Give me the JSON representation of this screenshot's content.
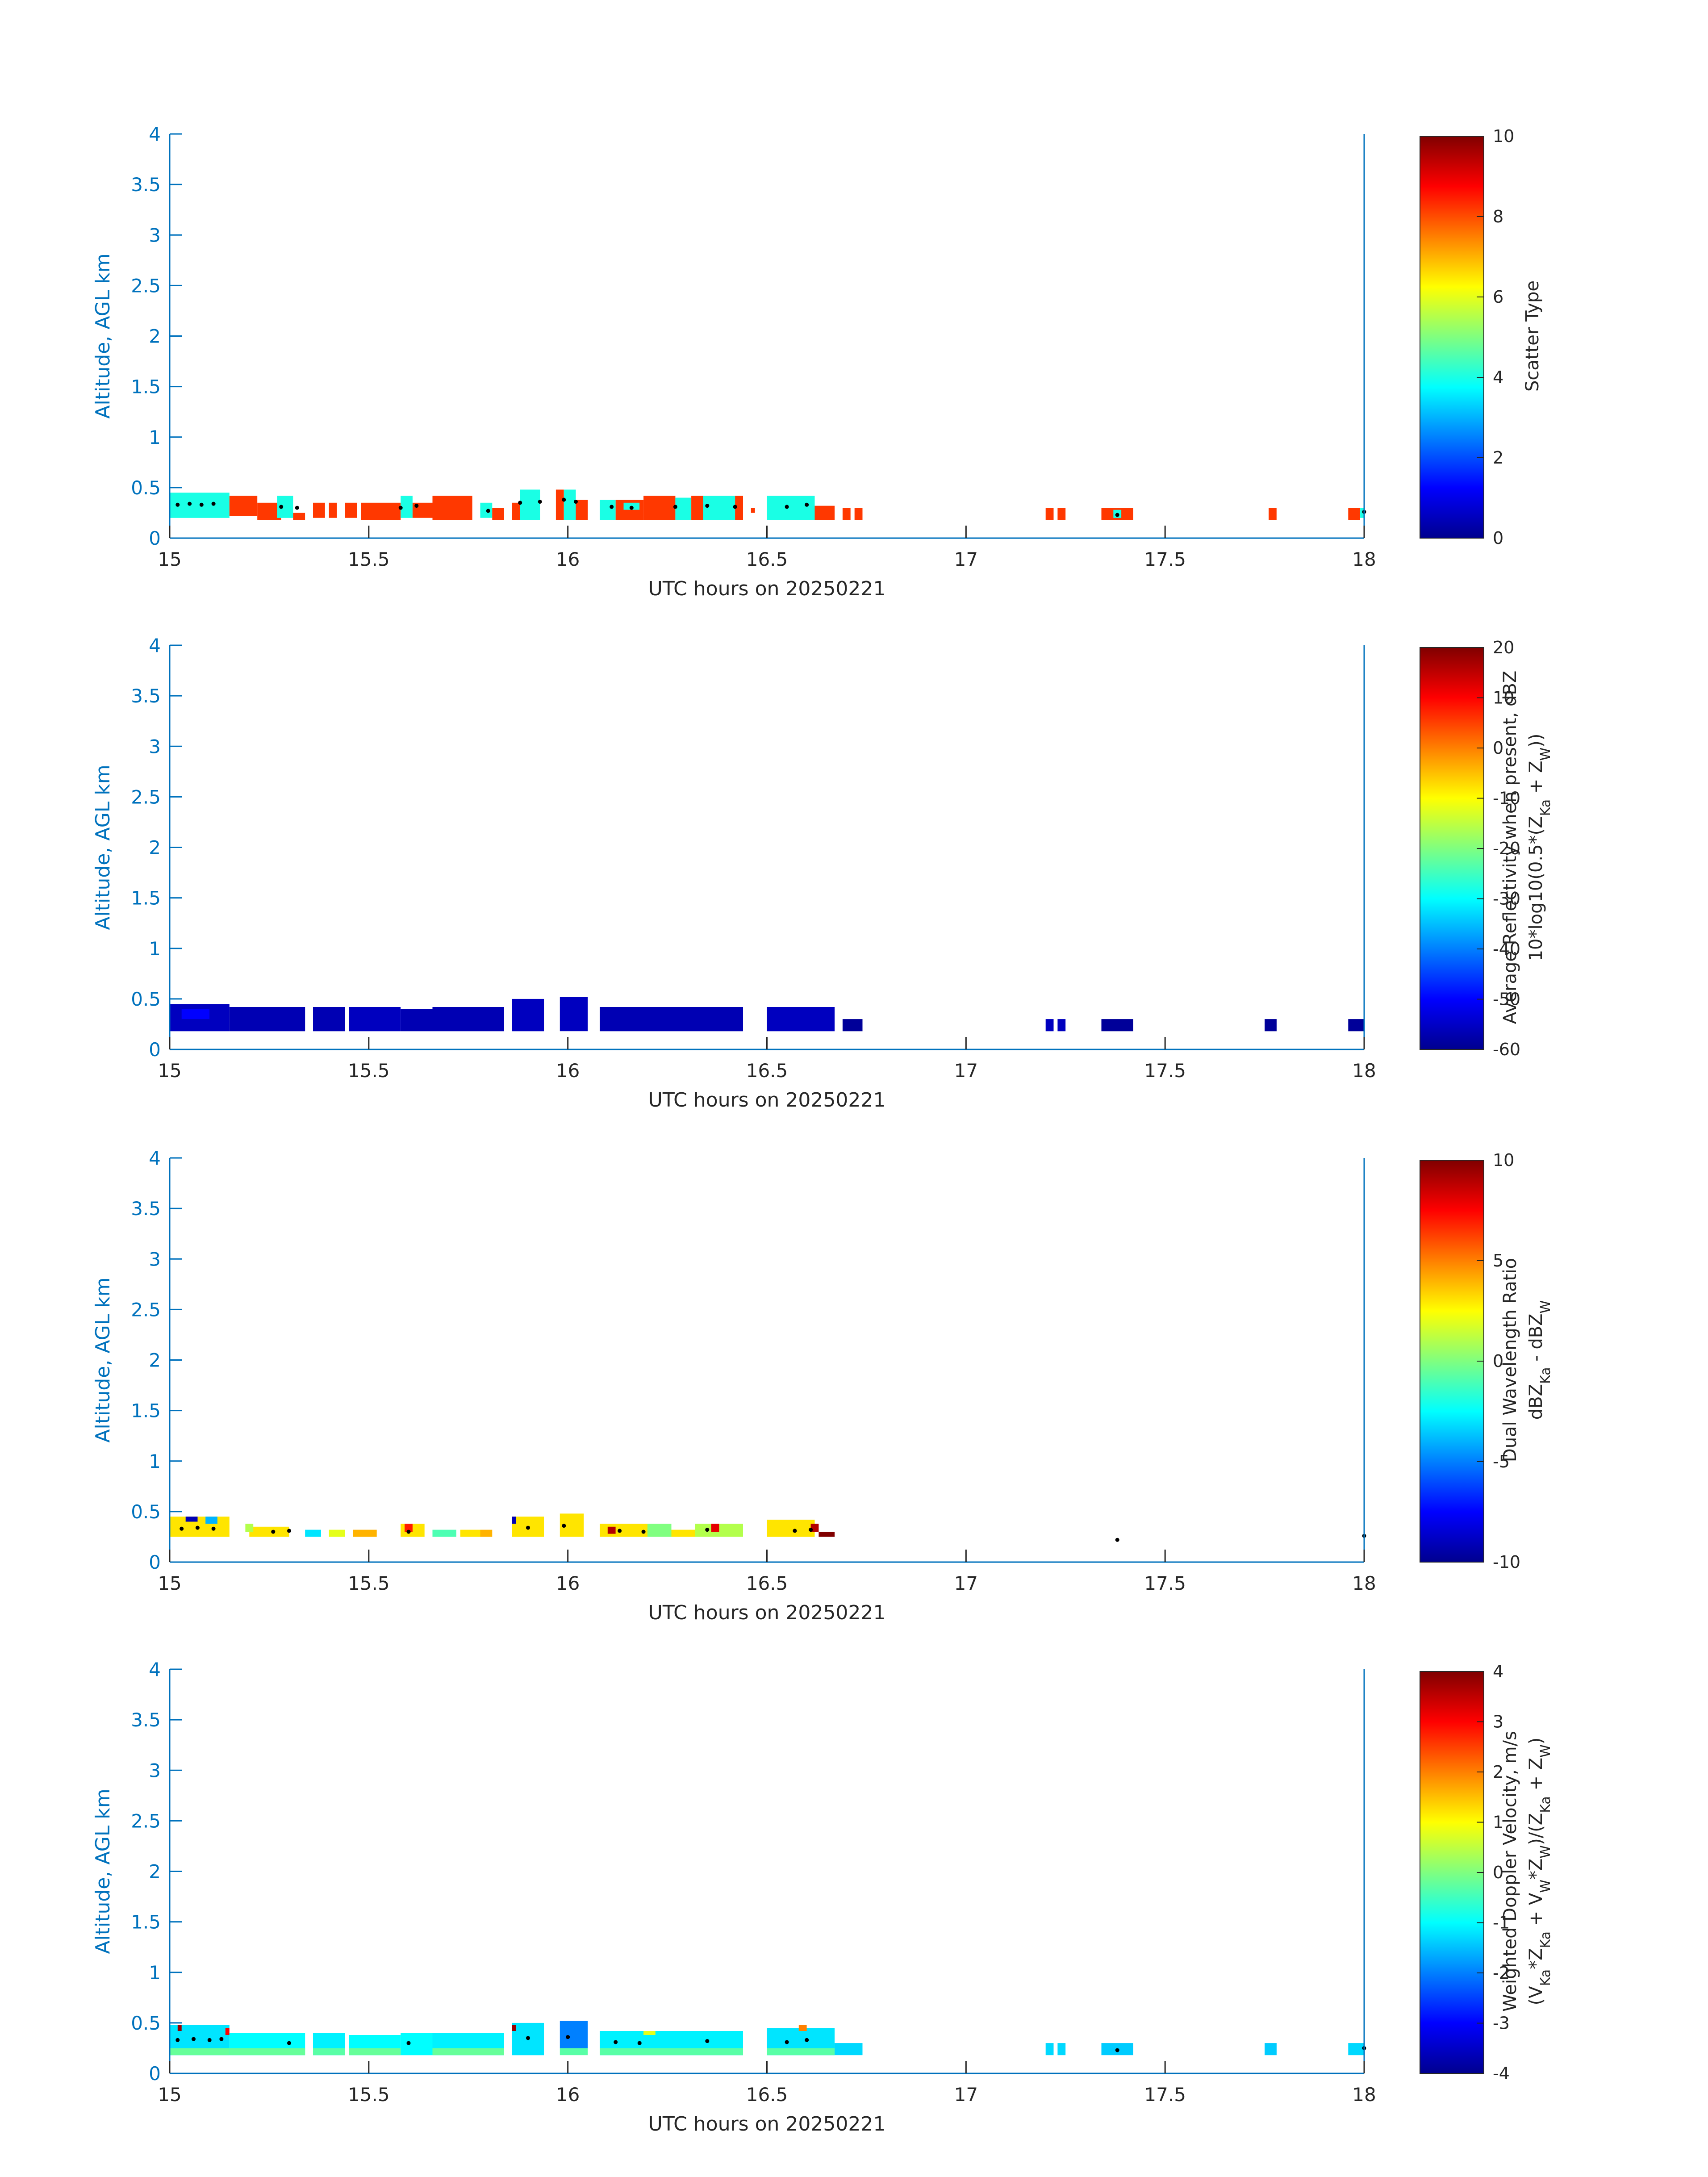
{
  "figure_title": "",
  "chart_data": [
    {
      "type": "heatmap",
      "name": "scatter-type",
      "xlabel": "UTC hours on 20250221",
      "ylabel": "Altitude, AGL km",
      "xlim": [
        15,
        18
      ],
      "ylim": [
        0,
        4
      ],
      "xticks": [
        "15",
        "15.5",
        "16",
        "16.5",
        "17",
        "17.5",
        "18"
      ],
      "yticks": [
        "0",
        "0.5",
        "1",
        "1.5",
        "2",
        "2.5",
        "3",
        "3.5",
        "4"
      ],
      "colorbar": {
        "colormap": "jet",
        "range": [
          0,
          10
        ],
        "ticks": [
          "0",
          "2",
          "4",
          "6",
          "8",
          "10"
        ],
        "label_lines": [
          "Scatter Type"
        ]
      },
      "cloud_base_marks": [
        [
          15.02,
          0.33
        ],
        [
          15.05,
          0.34
        ],
        [
          15.08,
          0.33
        ],
        [
          15.11,
          0.34
        ],
        [
          15.28,
          0.31
        ],
        [
          15.32,
          0.3
        ],
        [
          15.58,
          0.3
        ],
        [
          15.62,
          0.32
        ],
        [
          15.8,
          0.27
        ],
        [
          15.88,
          0.35
        ],
        [
          15.93,
          0.36
        ],
        [
          15.99,
          0.38
        ],
        [
          16.02,
          0.36
        ],
        [
          16.11,
          0.31
        ],
        [
          16.16,
          0.3
        ],
        [
          16.27,
          0.31
        ],
        [
          16.35,
          0.32
        ],
        [
          16.42,
          0.31
        ],
        [
          16.55,
          0.31
        ],
        [
          16.6,
          0.33
        ],
        [
          17.38,
          0.23
        ],
        [
          18.0,
          0.26
        ]
      ],
      "cells": [
        [
          15.0,
          15.15,
          0.2,
          0.45,
          4
        ],
        [
          15.15,
          15.22,
          0.22,
          0.42,
          8.2
        ],
        [
          15.22,
          15.28,
          0.18,
          0.35,
          8.2
        ],
        [
          15.27,
          15.31,
          0.2,
          0.42,
          4
        ],
        [
          15.31,
          15.34,
          0.18,
          0.25,
          8.2
        ],
        [
          15.36,
          15.39,
          0.2,
          0.35,
          8.2
        ],
        [
          15.4,
          15.42,
          0.2,
          0.35,
          8.2
        ],
        [
          15.44,
          15.47,
          0.2,
          0.35,
          8.2
        ],
        [
          15.48,
          15.58,
          0.18,
          0.35,
          8.2
        ],
        [
          15.58,
          15.61,
          0.2,
          0.42,
          4
        ],
        [
          15.61,
          15.66,
          0.2,
          0.35,
          8.2
        ],
        [
          15.66,
          15.76,
          0.18,
          0.42,
          8.2
        ],
        [
          15.78,
          15.81,
          0.2,
          0.35,
          4
        ],
        [
          15.81,
          15.84,
          0.18,
          0.3,
          8.2
        ],
        [
          15.86,
          15.9,
          0.18,
          0.35,
          8.2
        ],
        [
          15.88,
          15.93,
          0.18,
          0.48,
          4
        ],
        [
          15.97,
          15.99,
          0.18,
          0.48,
          8.2
        ],
        [
          15.99,
          16.02,
          0.18,
          0.48,
          4
        ],
        [
          16.02,
          16.05,
          0.18,
          0.38,
          8.2
        ],
        [
          16.08,
          16.12,
          0.18,
          0.38,
          4
        ],
        [
          16.12,
          16.19,
          0.18,
          0.38,
          8.2
        ],
        [
          16.14,
          16.18,
          0.28,
          0.35,
          4
        ],
        [
          16.19,
          16.27,
          0.18,
          0.42,
          8.2
        ],
        [
          16.27,
          16.31,
          0.18,
          0.4,
          4
        ],
        [
          16.31,
          16.36,
          0.18,
          0.42,
          8.2
        ],
        [
          16.34,
          16.38,
          0.18,
          0.42,
          4
        ],
        [
          16.38,
          16.44,
          0.18,
          0.42,
          4
        ],
        [
          16.42,
          16.44,
          0.18,
          0.42,
          8.2
        ],
        [
          16.46,
          16.47,
          0.25,
          0.3,
          8.2
        ],
        [
          16.5,
          16.62,
          0.18,
          0.42,
          4
        ],
        [
          16.62,
          16.67,
          0.18,
          0.32,
          8.2
        ],
        [
          16.69,
          16.71,
          0.18,
          0.3,
          8.2
        ],
        [
          16.72,
          16.74,
          0.18,
          0.3,
          8.2
        ],
        [
          17.2,
          17.22,
          0.18,
          0.3,
          8.2
        ],
        [
          17.23,
          17.25,
          0.18,
          0.3,
          8.2
        ],
        [
          17.34,
          17.42,
          0.18,
          0.3,
          8.2
        ],
        [
          17.37,
          17.39,
          0.2,
          0.28,
          4
        ],
        [
          17.76,
          17.78,
          0.18,
          0.3,
          8.2
        ],
        [
          17.96,
          17.99,
          0.18,
          0.3,
          8.2
        ],
        [
          17.99,
          18.0,
          0.2,
          0.3,
          4
        ]
      ]
    },
    {
      "type": "heatmap",
      "name": "reflectivity",
      "xlabel": "UTC hours on 20250221",
      "ylabel": "Altitude, AGL km",
      "xlim": [
        15,
        18
      ],
      "ylim": [
        0,
        4
      ],
      "xticks": [
        "15",
        "15.5",
        "16",
        "16.5",
        "17",
        "17.5",
        "18"
      ],
      "yticks": [
        "0",
        "0.5",
        "1",
        "1.5",
        "2",
        "2.5",
        "3",
        "3.5",
        "4"
      ],
      "colorbar": {
        "colormap": "jet",
        "range": [
          -60,
          20
        ],
        "ticks": [
          "-60",
          "-50",
          "-40",
          "-30",
          "-20",
          "-10",
          "0",
          "10",
          "20"
        ],
        "label_lines": [
          "Average Reflectivity when present, dBZ",
          "10*log10(0.5*(Z_Ka + Z_W))"
        ]
      },
      "cloud_base_marks": [],
      "cells": [
        [
          15.0,
          15.15,
          0.18,
          0.45,
          -55
        ],
        [
          15.03,
          15.1,
          0.3,
          0.4,
          -50
        ],
        [
          15.15,
          15.34,
          0.18,
          0.42,
          -56
        ],
        [
          15.36,
          15.44,
          0.18,
          0.42,
          -56
        ],
        [
          15.45,
          15.58,
          0.18,
          0.42,
          -55
        ],
        [
          15.58,
          15.66,
          0.18,
          0.4,
          -56
        ],
        [
          15.66,
          15.84,
          0.18,
          0.42,
          -56
        ],
        [
          15.86,
          15.94,
          0.18,
          0.5,
          -55
        ],
        [
          15.98,
          16.05,
          0.18,
          0.52,
          -55
        ],
        [
          16.08,
          16.44,
          0.18,
          0.42,
          -56
        ],
        [
          16.5,
          16.67,
          0.18,
          0.42,
          -55
        ],
        [
          16.69,
          16.74,
          0.18,
          0.3,
          -58
        ],
        [
          17.2,
          17.22,
          0.18,
          0.3,
          -55
        ],
        [
          17.23,
          17.25,
          0.18,
          0.3,
          -55
        ],
        [
          17.34,
          17.42,
          0.18,
          0.3,
          -58
        ],
        [
          17.75,
          17.78,
          0.18,
          0.3,
          -58
        ],
        [
          17.96,
          18.0,
          0.18,
          0.3,
          -58
        ]
      ]
    },
    {
      "type": "heatmap",
      "name": "dual-wavelength-ratio",
      "xlabel": "UTC hours on 20250221",
      "ylabel": "Altitude, AGL km",
      "xlim": [
        15,
        18
      ],
      "ylim": [
        0,
        4
      ],
      "xticks": [
        "15",
        "15.5",
        "16",
        "16.5",
        "17",
        "17.5",
        "18"
      ],
      "yticks": [
        "0",
        "0.5",
        "1",
        "1.5",
        "2",
        "2.5",
        "3",
        "3.5",
        "4"
      ],
      "colorbar": {
        "colormap": "jet",
        "range": [
          -10,
          10
        ],
        "ticks": [
          "-10",
          "-5",
          "0",
          "5",
          "10"
        ],
        "label_lines": [
          "Dual Wavelength Ratio",
          "dBZ_Ka - dBZ_W"
        ]
      },
      "cloud_base_marks": [
        [
          15.03,
          0.33
        ],
        [
          15.07,
          0.34
        ],
        [
          15.11,
          0.33
        ],
        [
          15.26,
          0.3
        ],
        [
          15.3,
          0.31
        ],
        [
          15.6,
          0.3
        ],
        [
          15.9,
          0.34
        ],
        [
          15.99,
          0.36
        ],
        [
          16.13,
          0.31
        ],
        [
          16.19,
          0.3
        ],
        [
          16.35,
          0.32
        ],
        [
          16.57,
          0.31
        ],
        [
          16.61,
          0.32
        ],
        [
          17.38,
          0.22
        ],
        [
          18.0,
          0.26
        ]
      ],
      "cells": [
        [
          15.0,
          15.15,
          0.25,
          0.45,
          3
        ],
        [
          15.04,
          15.07,
          0.4,
          0.45,
          -9
        ],
        [
          15.09,
          15.12,
          0.38,
          0.45,
          -4
        ],
        [
          15.2,
          15.3,
          0.25,
          0.35,
          3
        ],
        [
          15.19,
          15.21,
          0.3,
          0.38,
          1
        ],
        [
          15.34,
          15.38,
          0.25,
          0.32,
          -3
        ],
        [
          15.4,
          15.44,
          0.25,
          0.32,
          2
        ],
        [
          15.46,
          15.52,
          0.25,
          0.32,
          4
        ],
        [
          15.58,
          15.64,
          0.25,
          0.38,
          3
        ],
        [
          15.59,
          15.61,
          0.3,
          0.38,
          7
        ],
        [
          15.66,
          15.72,
          0.25,
          0.32,
          -1
        ],
        [
          15.73,
          15.78,
          0.25,
          0.32,
          3
        ],
        [
          15.78,
          15.81,
          0.25,
          0.32,
          4
        ],
        [
          15.86,
          15.94,
          0.25,
          0.45,
          3
        ],
        [
          15.86,
          15.87,
          0.38,
          0.45,
          -9
        ],
        [
          15.98,
          16.04,
          0.25,
          0.48,
          3
        ],
        [
          16.08,
          16.2,
          0.25,
          0.38,
          3
        ],
        [
          16.1,
          16.12,
          0.28,
          0.35,
          9
        ],
        [
          16.2,
          16.26,
          0.25,
          0.38,
          0
        ],
        [
          16.26,
          16.32,
          0.25,
          0.32,
          3
        ],
        [
          16.32,
          16.44,
          0.25,
          0.38,
          1
        ],
        [
          16.36,
          16.38,
          0.3,
          0.38,
          8
        ],
        [
          16.5,
          16.62,
          0.25,
          0.42,
          3
        ],
        [
          16.61,
          16.63,
          0.3,
          0.38,
          9
        ],
        [
          16.63,
          16.67,
          0.25,
          0.3,
          10
        ]
      ]
    },
    {
      "type": "heatmap",
      "name": "doppler-velocity",
      "xlabel": "UTC hours on 20250221",
      "ylabel": "Altitude, AGL km",
      "xlim": [
        15,
        18
      ],
      "ylim": [
        0,
        4
      ],
      "xticks": [
        "15",
        "15.5",
        "16",
        "16.5",
        "17",
        "17.5",
        "18"
      ],
      "yticks": [
        "0",
        "0.5",
        "1",
        "1.5",
        "2",
        "2.5",
        "3",
        "3.5",
        "4"
      ],
      "colorbar": {
        "colormap": "jet",
        "range": [
          -4,
          4
        ],
        "ticks": [
          "-4",
          "-3",
          "-2",
          "-1",
          "0",
          "1",
          "2",
          "3",
          "4"
        ],
        "label_lines": [
          "Weighted Doppler Velocity, m/s",
          "(V_Ka*Z_Ka + V_W*Z_W)/(Z_Ka + Z_W)"
        ]
      },
      "cloud_base_marks": [
        [
          15.02,
          0.33
        ],
        [
          15.06,
          0.34
        ],
        [
          15.1,
          0.33
        ],
        [
          15.13,
          0.34
        ],
        [
          15.3,
          0.3
        ],
        [
          15.6,
          0.3
        ],
        [
          15.9,
          0.35
        ],
        [
          16.0,
          0.36
        ],
        [
          16.12,
          0.31
        ],
        [
          16.18,
          0.3
        ],
        [
          16.35,
          0.32
        ],
        [
          16.55,
          0.31
        ],
        [
          16.6,
          0.33
        ],
        [
          17.38,
          0.23
        ],
        [
          18.0,
          0.25
        ]
      ],
      "cells": [
        [
          15.0,
          15.15,
          0.18,
          0.48,
          -1.2
        ],
        [
          15.0,
          15.15,
          0.18,
          0.25,
          -0.2
        ],
        [
          15.02,
          15.03,
          0.42,
          0.48,
          3.8
        ],
        [
          15.14,
          15.15,
          0.38,
          0.45,
          3
        ],
        [
          15.15,
          15.34,
          0.18,
          0.4,
          -1
        ],
        [
          15.15,
          15.34,
          0.18,
          0.25,
          -0.2
        ],
        [
          15.36,
          15.44,
          0.18,
          0.4,
          -1.1
        ],
        [
          15.36,
          15.44,
          0.18,
          0.25,
          -0.3
        ],
        [
          15.45,
          15.58,
          0.18,
          0.38,
          -1
        ],
        [
          15.45,
          15.58,
          0.18,
          0.25,
          -0.2
        ],
        [
          15.58,
          15.66,
          0.18,
          0.4,
          -1
        ],
        [
          15.66,
          15.84,
          0.18,
          0.4,
          -1.1
        ],
        [
          15.66,
          15.84,
          0.18,
          0.25,
          -0.2
        ],
        [
          15.86,
          15.94,
          0.18,
          0.5,
          -1.2
        ],
        [
          15.86,
          15.87,
          0.42,
          0.48,
          3.8
        ],
        [
          15.98,
          16.05,
          0.25,
          0.52,
          -2
        ],
        [
          15.98,
          16.05,
          0.18,
          0.25,
          -0.3
        ],
        [
          16.08,
          16.44,
          0.18,
          0.42,
          -1.1
        ],
        [
          16.08,
          16.44,
          0.18,
          0.25,
          -0.3
        ],
        [
          16.19,
          16.22,
          0.38,
          0.42,
          0.8
        ],
        [
          16.5,
          16.67,
          0.18,
          0.45,
          -1.2
        ],
        [
          16.5,
          16.67,
          0.18,
          0.25,
          -0.3
        ],
        [
          16.58,
          16.6,
          0.42,
          0.48,
          2
        ],
        [
          16.67,
          16.74,
          0.18,
          0.3,
          -1.3
        ],
        [
          17.2,
          17.22,
          0.18,
          0.3,
          -1.3
        ],
        [
          17.23,
          17.25,
          0.18,
          0.3,
          -1.3
        ],
        [
          17.34,
          17.42,
          0.18,
          0.3,
          -1.4
        ],
        [
          17.75,
          17.78,
          0.18,
          0.3,
          -1.4
        ],
        [
          17.96,
          18.0,
          0.18,
          0.3,
          -1.3
        ]
      ]
    }
  ]
}
